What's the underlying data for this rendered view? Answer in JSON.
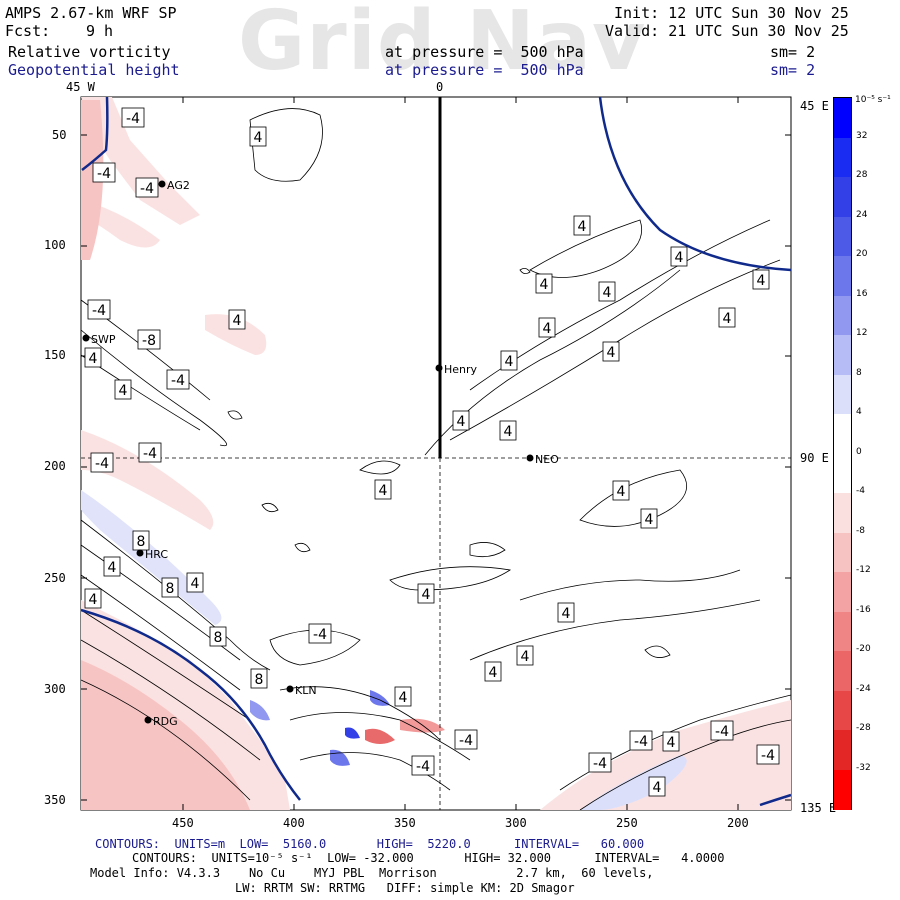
{
  "header": {
    "model": "AMPS 2.67-km WRF SP",
    "fcst_label": "Fcst:",
    "fcst_value": "9 h",
    "field1": "Relative vorticity",
    "field2": "Geopotential height",
    "pressure1": "at pressure =  500 hPa",
    "pressure2": "at pressure =  500 hPa",
    "init": "Init: 12 UTC Sun 30 Nov 25",
    "valid": "Valid: 21 UTC Sun 30 Nov 25",
    "sm1": "sm= 2",
    "sm2": "sm= 2",
    "watermark": "Grid Nav"
  },
  "map": {
    "top_labels": [
      "45 W",
      "0"
    ],
    "right_labels": [
      "45 E",
      "90 E",
      "135 E"
    ],
    "y_ticks": [
      "50",
      "100",
      "150",
      "200",
      "250",
      "300",
      "350"
    ],
    "x_ticks": [
      "450",
      "400",
      "350",
      "300",
      "250",
      "200"
    ],
    "stations": [
      "AG2",
      "SWP",
      "Henry",
      "NEO",
      "HRC",
      "KLN",
      "RDG"
    ],
    "contour_labels": [
      "-4",
      "4",
      "4",
      "-4",
      "-4",
      "4",
      "4",
      "4",
      "4",
      "-4",
      "4",
      "4",
      "4",
      "-8",
      "4",
      "-4",
      "4",
      "4",
      "4",
      "4",
      "4",
      "-4",
      "-4",
      "4",
      "4",
      "4",
      "8",
      "4",
      "8",
      "4",
      "4",
      "4",
      "8",
      "-4",
      "4",
      "8",
      "4",
      "4",
      "-4",
      "4",
      "4",
      "-4",
      "-4",
      "-4",
      "-4",
      "-4"
    ],
    "colors": {
      "height_contour": "#102a8c",
      "pos_vort": "#3d4fd8",
      "neg_vort": "#e05050"
    }
  },
  "colorbar": {
    "unit": "10⁻⁵ s⁻¹",
    "labels": [
      "32",
      "28",
      "24",
      "20",
      "16",
      "12",
      "8",
      "4",
      "0",
      "-4",
      "-8",
      "-12",
      "-16",
      "-20",
      "-24",
      "-28",
      "-32"
    ],
    "colors_top_to_bottom": [
      "#0000ff",
      "#1a2bf2",
      "#3340e8",
      "#4d5ae8",
      "#6d77ec",
      "#9098f0",
      "#b6bcf5",
      "#dcdffa",
      "#ffffff",
      "#ffffff",
      "#fbe0e0",
      "#f7c2c2",
      "#f3a3a3",
      "#ef8585",
      "#eb6666",
      "#e84747",
      "#e32626",
      "#ff0000"
    ]
  },
  "footer": {
    "line1": "CONTOURS:  UNITS=m  LOW=  5160.0       HIGH=  5220.0      INTERVAL=   60.000",
    "line2": "CONTOURS:  UNITS=10⁻⁵ s⁻¹  LOW= -32.000       HIGH= 32.000      INTERVAL=   4.0000",
    "line3": "Model Info: V4.3.3    No Cu    MYJ PBL  Morrison           2.7 km,  60 levels,",
    "line4": "LW: RRTM SW: RRTMG   DIFF: simple KM: 2D Smagor"
  }
}
